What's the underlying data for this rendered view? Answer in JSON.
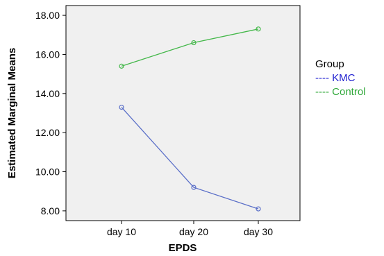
{
  "chart_data": {
    "type": "line",
    "xlabel": "EPDS",
    "ylabel": "Estimated Marginal Means",
    "categories": [
      "day 10",
      "day 20",
      "day 30"
    ],
    "ylim": [
      7.5,
      18.5
    ],
    "yticks": [
      "8.00",
      "10.00",
      "12.00",
      "14.00",
      "16.00",
      "18.00"
    ],
    "legend_title": "Group",
    "legend_position": "right",
    "series": [
      {
        "name": "KMC",
        "legend_label": "---- KMC",
        "color": "#5a6fc8",
        "values": [
          13.3,
          9.2,
          8.1
        ]
      },
      {
        "name": "Control",
        "legend_label": "---- Control",
        "color": "#44b84a",
        "values": [
          15.4,
          16.6,
          17.3
        ]
      }
    ],
    "plot_background": "#f0f0f0",
    "grid": false
  }
}
